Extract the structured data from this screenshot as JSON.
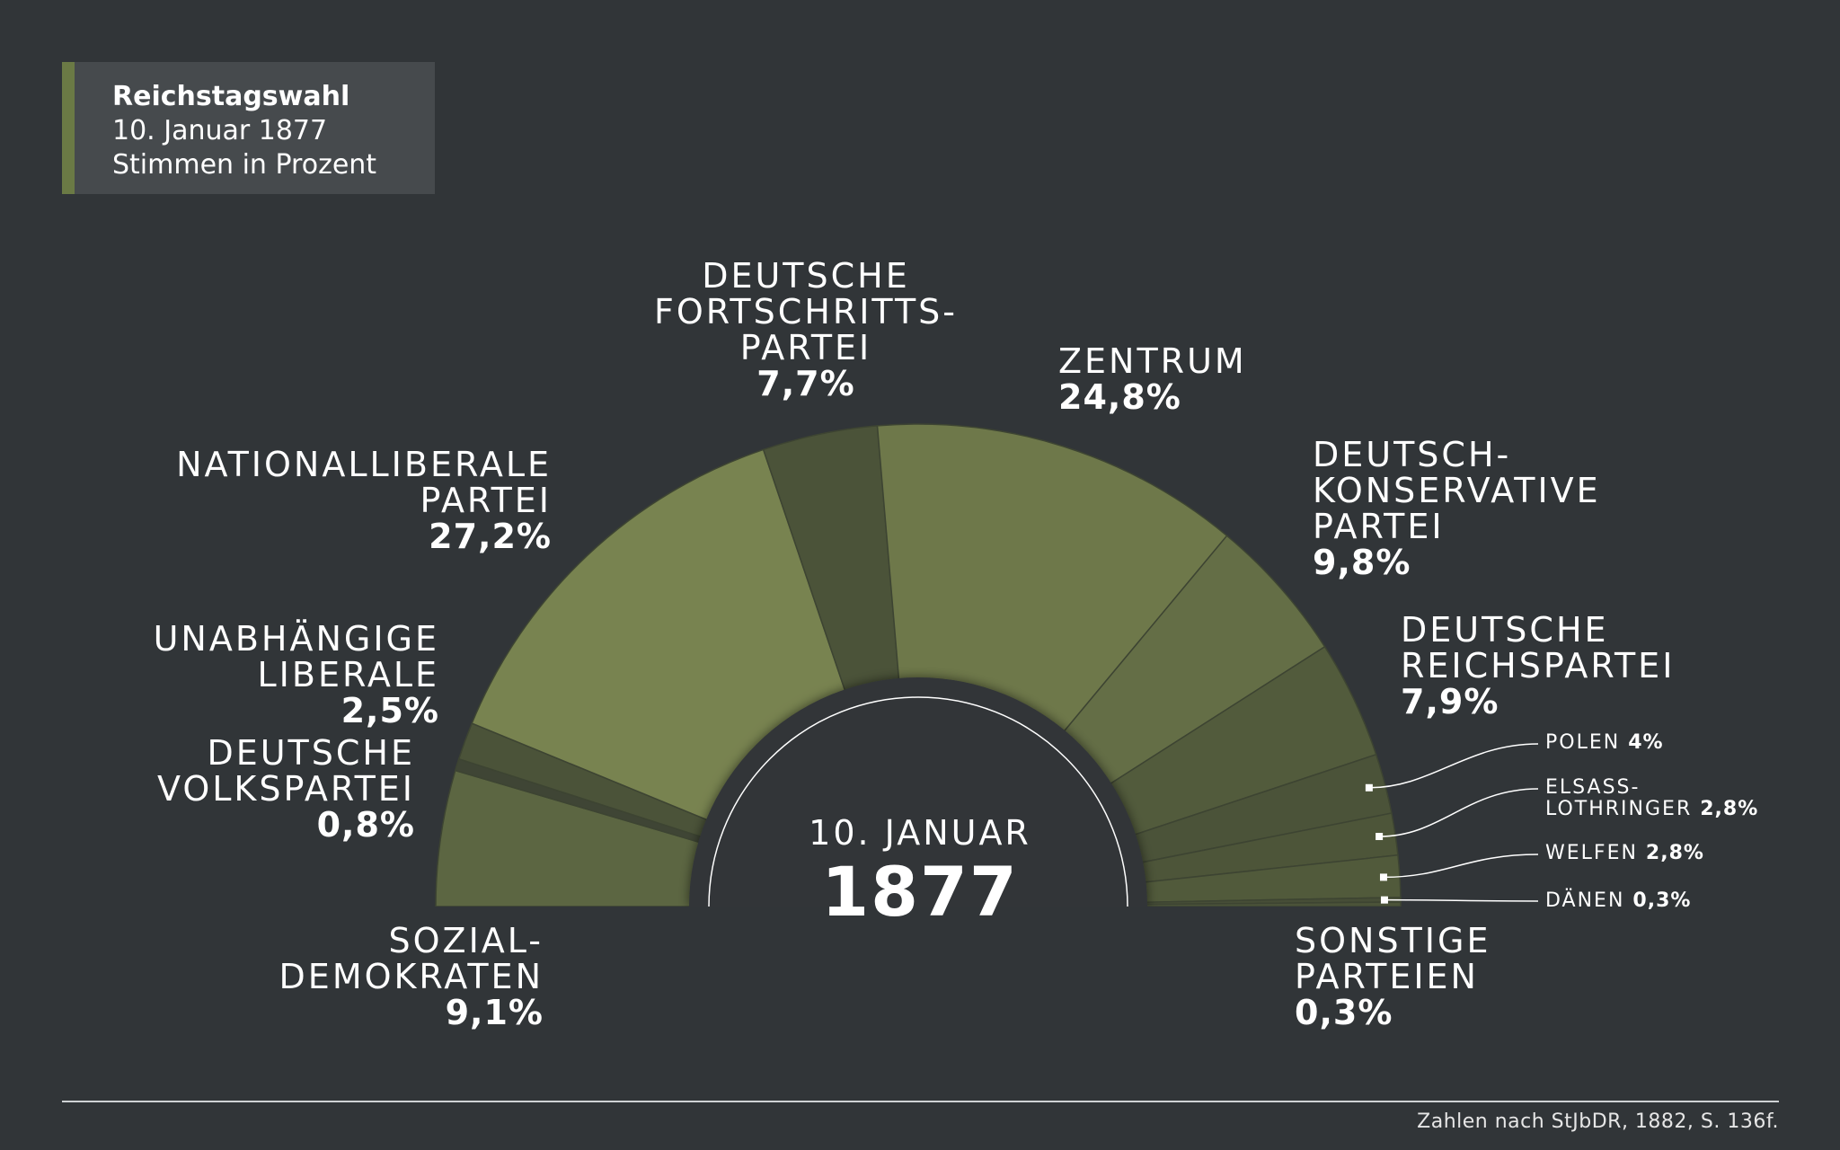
{
  "title_box": {
    "line1": "Reichstagswahl",
    "line2": "10. Januar 1877",
    "line3": "Stimmen in Prozent"
  },
  "center": {
    "sub": "10. JANUAR",
    "year": "1877"
  },
  "footer": "Zahlen nach StJbDR, 1882, S. 136f.",
  "chart_data": {
    "type": "pie",
    "shape": "semicircle",
    "title": "Reichstagswahl",
    "subtitle": "10. Januar 1877 Stimmen in Prozent",
    "unit": "%",
    "slices": [
      {
        "lines": [
          "SOZIAL-",
          "DEMOKRATEN"
        ],
        "value": 9.1,
        "label": "9,1%",
        "color": "#5c6642"
      },
      {
        "lines": [
          "DEUTSCHE",
          "VOLKSPARTEI"
        ],
        "value": 0.8,
        "label": "0,8%",
        "color": "#3f4535"
      },
      {
        "lines": [
          "UNABHÄNGIGE",
          "LIBERALE"
        ],
        "value": 2.5,
        "label": "2,5%",
        "color": "#4b5339"
      },
      {
        "lines": [
          "NATIONALLIBERALE",
          "PARTEI"
        ],
        "value": 27.2,
        "label": "27,2%",
        "color": "#788350"
      },
      {
        "lines": [
          "DEUTSCHE",
          "FORTSCHRITTS-",
          "PARTEI"
        ],
        "value": 7.7,
        "label": "7,7%",
        "color": "#4b5339"
      },
      {
        "lines": [
          "ZENTRUM"
        ],
        "value": 24.8,
        "label": "24,8%",
        "color": "#6e784a"
      },
      {
        "lines": [
          "DEUTSCH-",
          "KONSERVATIVE",
          "PARTEI"
        ],
        "value": 9.8,
        "label": "9,8%",
        "color": "#646e46"
      },
      {
        "lines": [
          "DEUTSCHE",
          "REICHSPARTEI"
        ],
        "value": 7.9,
        "label": "7,9%",
        "color": "#525b3c"
      },
      {
        "lines": [
          "POLEN"
        ],
        "value": 4,
        "label": "4%",
        "color": "#4b5339"
      },
      {
        "lines": [
          "ELSASS-",
          "LOTHRINGER"
        ],
        "value": 2.8,
        "label": "2,8%",
        "color": "#4d5539"
      },
      {
        "lines": [
          "WELFEN"
        ],
        "value": 2.8,
        "label": "2,8%",
        "color": "#515a3b"
      },
      {
        "lines": [
          "DÄNEN"
        ],
        "value": 0.3,
        "label": "0,3%",
        "color": "#474e37"
      },
      {
        "lines": [
          "SONSTIGE",
          "PARTEIEN"
        ],
        "value": 0.3,
        "label": "0,3%",
        "color": "#4b5339"
      }
    ]
  }
}
